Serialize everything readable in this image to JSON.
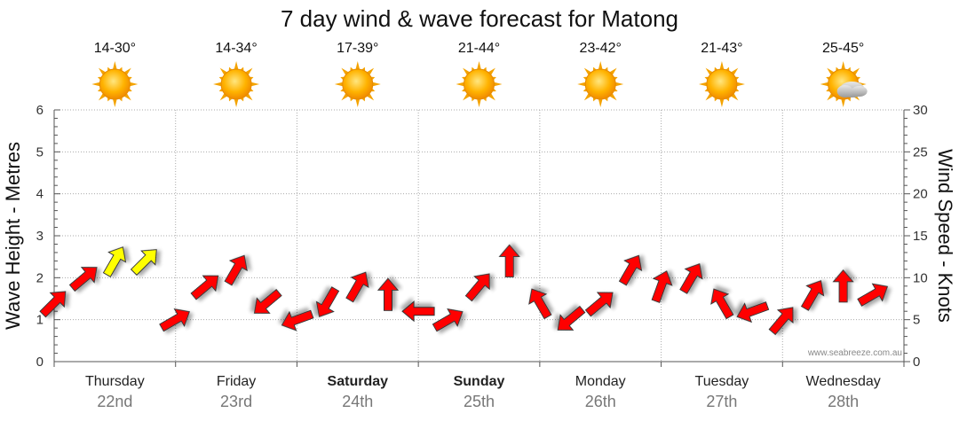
{
  "title": "7 day wind & wave forecast for Matong",
  "credit": "www.seabreeze.com.au",
  "colors": {
    "arrow": "#ff0000",
    "arrow_light": "#ffff00",
    "grid": "#aaaaaa"
  },
  "chart_data": {
    "type": "line",
    "ylabel_left": "Wave Height - Metres",
    "ylabel_right": "Wind Speed - Knots",
    "ylim_left": [
      0,
      6
    ],
    "yticks_left": [
      "0",
      "1",
      "2",
      "3",
      "4",
      "5",
      "6"
    ],
    "ylim_right": [
      0,
      30
    ],
    "yticks_right": [
      "0",
      "5",
      "10",
      "15",
      "20",
      "25",
      "30"
    ],
    "grid": true,
    "days": [
      {
        "day": "Thursday",
        "date": "22nd",
        "temp": "14-30°",
        "icon": "sun-icon",
        "bold": false
      },
      {
        "day": "Friday",
        "date": "23rd",
        "temp": "14-34°",
        "icon": "sun-icon",
        "bold": false
      },
      {
        "day": "Saturday",
        "date": "24th",
        "temp": "17-39°",
        "icon": "sun-icon",
        "bold": true
      },
      {
        "day": "Sunday",
        "date": "25th",
        "temp": "21-44°",
        "icon": "sun-icon",
        "bold": true
      },
      {
        "day": "Monday",
        "date": "26th",
        "temp": "23-42°",
        "icon": "sun-icon",
        "bold": false
      },
      {
        "day": "Tuesday",
        "date": "27th",
        "temp": "21-43°",
        "icon": "sun-icon",
        "bold": false
      },
      {
        "day": "Wednesday",
        "date": "28th",
        "temp": "25-45°",
        "icon": "sun-cloud-icon",
        "bold": false
      }
    ],
    "series": [
      {
        "unit": "knots",
        "x_hours": [
          0,
          6,
          12,
          18,
          24,
          30,
          36,
          42,
          48,
          54,
          60,
          66,
          72,
          78,
          84,
          90,
          96,
          102,
          108,
          114,
          120,
          126,
          132,
          138,
          144,
          150,
          156,
          162
        ],
        "wind_speed": [
          7,
          10,
          12,
          12,
          5,
          9,
          11,
          7,
          5,
          7,
          9,
          8,
          6,
          5,
          9,
          12,
          7,
          5,
          7,
          11,
          9,
          10,
          7,
          6,
          5,
          8,
          9,
          8
        ],
        "direction_deg": [
          45,
          40,
          60,
          45,
          30,
          40,
          60,
          220,
          200,
          240,
          60,
          90,
          180,
          30,
          50,
          90,
          120,
          220,
          40,
          60,
          70,
          60,
          120,
          200,
          50,
          60,
          90,
          30
        ]
      }
    ]
  }
}
